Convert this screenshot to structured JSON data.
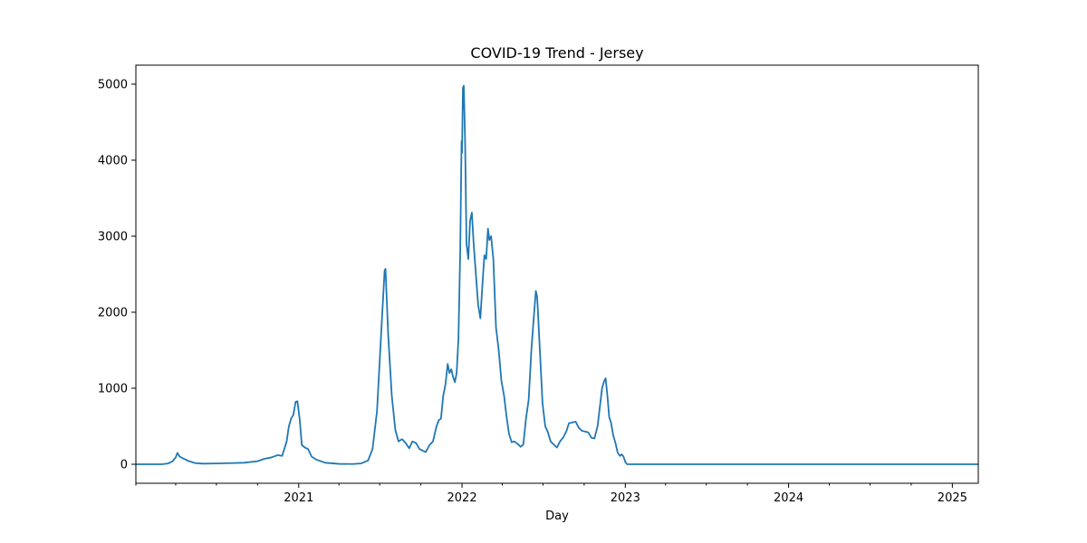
{
  "chart_data": {
    "type": "line",
    "title": "COVID-19 Trend - Jersey",
    "xlabel": "Day",
    "ylabel": "",
    "x_axis": {
      "type": "date",
      "range": [
        "2020-01-03",
        "2025-02-28"
      ],
      "major_ticks": [
        {
          "label": "2021",
          "date": "2021-01-01"
        },
        {
          "label": "2022",
          "date": "2022-01-01"
        },
        {
          "label": "2023",
          "date": "2023-01-01"
        },
        {
          "label": "2024",
          "date": "2024-01-01"
        },
        {
          "label": "2025",
          "date": "2025-01-01"
        }
      ]
    },
    "y_axis": {
      "ylim": [
        -250,
        5250
      ],
      "ticks": [
        "0",
        "1000",
        "2000",
        "3000",
        "4000",
        "5000"
      ]
    },
    "grid": false,
    "legend": "none",
    "series": [
      {
        "color": "#1f77b4",
        "points": [
          [
            "2020-01-03",
            0
          ],
          [
            "2020-03-01",
            0
          ],
          [
            "2020-03-15",
            10
          ],
          [
            "2020-03-25",
            40
          ],
          [
            "2020-04-01",
            90
          ],
          [
            "2020-04-05",
            150
          ],
          [
            "2020-04-10",
            100
          ],
          [
            "2020-04-20",
            70
          ],
          [
            "2020-05-01",
            40
          ],
          [
            "2020-05-15",
            15
          ],
          [
            "2020-06-01",
            8
          ],
          [
            "2020-07-01",
            10
          ],
          [
            "2020-08-01",
            15
          ],
          [
            "2020-09-01",
            20
          ],
          [
            "2020-10-01",
            40
          ],
          [
            "2020-10-15",
            70
          ],
          [
            "2020-11-01",
            90
          ],
          [
            "2020-11-15",
            120
          ],
          [
            "2020-11-25",
            110
          ],
          [
            "2020-12-05",
            300
          ],
          [
            "2020-12-10",
            500
          ],
          [
            "2020-12-15",
            600
          ],
          [
            "2020-12-20",
            650
          ],
          [
            "2020-12-25",
            820
          ],
          [
            "2020-12-29",
            830
          ],
          [
            "2021-01-03",
            600
          ],
          [
            "2021-01-08",
            250
          ],
          [
            "2021-01-15",
            220
          ],
          [
            "2021-01-22",
            200
          ],
          [
            "2021-01-30",
            100
          ],
          [
            "2021-02-10",
            60
          ],
          [
            "2021-03-01",
            20
          ],
          [
            "2021-04-01",
            5
          ],
          [
            "2021-05-01",
            3
          ],
          [
            "2021-05-20",
            10
          ],
          [
            "2021-06-05",
            50
          ],
          [
            "2021-06-15",
            200
          ],
          [
            "2021-06-25",
            700
          ],
          [
            "2021-07-05",
            1800
          ],
          [
            "2021-07-12",
            2550
          ],
          [
            "2021-07-14",
            2570
          ],
          [
            "2021-07-20",
            1700
          ],
          [
            "2021-07-28",
            900
          ],
          [
            "2021-08-05",
            450
          ],
          [
            "2021-08-12",
            300
          ],
          [
            "2021-08-20",
            330
          ],
          [
            "2021-08-28",
            280
          ],
          [
            "2021-09-05",
            210
          ],
          [
            "2021-09-12",
            300
          ],
          [
            "2021-09-20",
            280
          ],
          [
            "2021-09-28",
            200
          ],
          [
            "2021-10-05",
            180
          ],
          [
            "2021-10-12",
            160
          ],
          [
            "2021-10-20",
            250
          ],
          [
            "2021-10-28",
            300
          ],
          [
            "2021-11-05",
            500
          ],
          [
            "2021-11-10",
            580
          ],
          [
            "2021-11-15",
            600
          ],
          [
            "2021-11-20",
            900
          ],
          [
            "2021-11-25",
            1050
          ],
          [
            "2021-11-30",
            1320
          ],
          [
            "2021-12-04",
            1200
          ],
          [
            "2021-12-08",
            1250
          ],
          [
            "2021-12-12",
            1150
          ],
          [
            "2021-12-16",
            1080
          ],
          [
            "2021-12-20",
            1200
          ],
          [
            "2021-12-24",
            1650
          ],
          [
            "2021-12-28",
            2800
          ],
          [
            "2021-12-31",
            4250
          ],
          [
            "2022-01-01",
            4100
          ],
          [
            "2022-01-03",
            4950
          ],
          [
            "2022-01-05",
            4980
          ],
          [
            "2022-01-08",
            4200
          ],
          [
            "2022-01-11",
            2900
          ],
          [
            "2022-01-15",
            2700
          ],
          [
            "2022-01-19",
            3200
          ],
          [
            "2022-01-23",
            3310
          ],
          [
            "2022-01-27",
            2900
          ],
          [
            "2022-02-01",
            2500
          ],
          [
            "2022-02-06",
            2100
          ],
          [
            "2022-02-11",
            1920
          ],
          [
            "2022-02-16",
            2400
          ],
          [
            "2022-02-20",
            2750
          ],
          [
            "2022-02-24",
            2700
          ],
          [
            "2022-02-28",
            3100
          ],
          [
            "2022-03-03",
            2950
          ],
          [
            "2022-03-07",
            3000
          ],
          [
            "2022-03-12",
            2700
          ],
          [
            "2022-03-18",
            1800
          ],
          [
            "2022-03-24",
            1500
          ],
          [
            "2022-03-30",
            1100
          ],
          [
            "2022-04-05",
            900
          ],
          [
            "2022-04-10",
            650
          ],
          [
            "2022-04-16",
            400
          ],
          [
            "2022-04-22",
            290
          ],
          [
            "2022-04-28",
            300
          ],
          [
            "2022-05-05",
            270
          ],
          [
            "2022-05-12",
            230
          ],
          [
            "2022-05-18",
            260
          ],
          [
            "2022-05-24",
            600
          ],
          [
            "2022-05-30",
            850
          ],
          [
            "2022-06-05",
            1500
          ],
          [
            "2022-06-10",
            1900
          ],
          [
            "2022-06-15",
            2280
          ],
          [
            "2022-06-18",
            2200
          ],
          [
            "2022-06-24",
            1500
          ],
          [
            "2022-06-30",
            800
          ],
          [
            "2022-07-06",
            500
          ],
          [
            "2022-07-12",
            420
          ],
          [
            "2022-07-18",
            300
          ],
          [
            "2022-07-25",
            260
          ],
          [
            "2022-08-01",
            220
          ],
          [
            "2022-08-08",
            300
          ],
          [
            "2022-08-15",
            350
          ],
          [
            "2022-08-22",
            430
          ],
          [
            "2022-08-28",
            540
          ],
          [
            "2022-09-05",
            550
          ],
          [
            "2022-09-12",
            560
          ],
          [
            "2022-09-19",
            480
          ],
          [
            "2022-09-26",
            440
          ],
          [
            "2022-10-03",
            430
          ],
          [
            "2022-10-10",
            420
          ],
          [
            "2022-10-17",
            350
          ],
          [
            "2022-10-24",
            340
          ],
          [
            "2022-10-31",
            500
          ],
          [
            "2022-11-05",
            750
          ],
          [
            "2022-11-10",
            1000
          ],
          [
            "2022-11-15",
            1100
          ],
          [
            "2022-11-18",
            1130
          ],
          [
            "2022-11-22",
            900
          ],
          [
            "2022-11-26",
            620
          ],
          [
            "2022-11-30",
            550
          ],
          [
            "2022-12-05",
            380
          ],
          [
            "2022-12-10",
            280
          ],
          [
            "2022-12-15",
            150
          ],
          [
            "2022-12-20",
            110
          ],
          [
            "2022-12-24",
            130
          ],
          [
            "2022-12-28",
            100
          ],
          [
            "2023-01-01",
            30
          ],
          [
            "2023-01-05",
            0
          ],
          [
            "2023-03-01",
            0
          ],
          [
            "2024-01-01",
            0
          ],
          [
            "2025-02-28",
            0
          ]
        ]
      }
    ]
  }
}
